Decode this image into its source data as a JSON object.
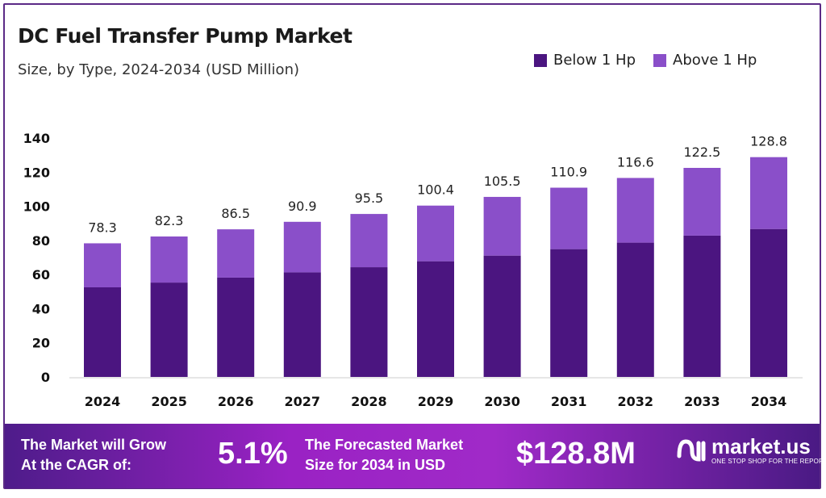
{
  "chart_data": {
    "type": "bar",
    "stacked": true,
    "title": "DC Fuel Transfer Pump Market",
    "subtitle": "Size, by Type, 2024-2034 (USD Million)",
    "xlabel": "",
    "ylabel": "",
    "ylim": [
      0,
      140
    ],
    "yticks": [
      0,
      20,
      40,
      60,
      80,
      100,
      120,
      140
    ],
    "grid": false,
    "legend_position": "top-right",
    "categories": [
      "2024",
      "2025",
      "2026",
      "2027",
      "2028",
      "2029",
      "2030",
      "2031",
      "2032",
      "2033",
      "2034"
    ],
    "series": [
      {
        "name": "Below 1 Hp",
        "color": "#4b1580",
        "values": [
          52.5,
          55.3,
          58.2,
          61.3,
          64.3,
          67.8,
          71.1,
          74.9,
          78.7,
          82.8,
          86.7
        ]
      },
      {
        "name": "Above 1 Hp",
        "color": "#8a4fc9",
        "values": [
          25.8,
          27.0,
          28.3,
          29.6,
          31.2,
          32.6,
          34.4,
          36.0,
          37.9,
          39.7,
          42.1
        ]
      }
    ],
    "totals": [
      "78.3",
      "82.3",
      "86.5",
      "90.9",
      "95.5",
      "100.4",
      "105.5",
      "110.9",
      "116.6",
      "122.5",
      "128.8"
    ]
  },
  "banner": {
    "cagr_label_line1": "The Market will Grow",
    "cagr_label_line2": "At the CAGR of:",
    "cagr_value": "5.1%",
    "forecast_label_line1": "The Forecasted Market",
    "forecast_label_line2": "Size for 2034 in USD",
    "forecast_value": "$128.8M",
    "logo_name": "market.us",
    "logo_tagline": "ONE STOP SHOP FOR THE REPORTS"
  }
}
